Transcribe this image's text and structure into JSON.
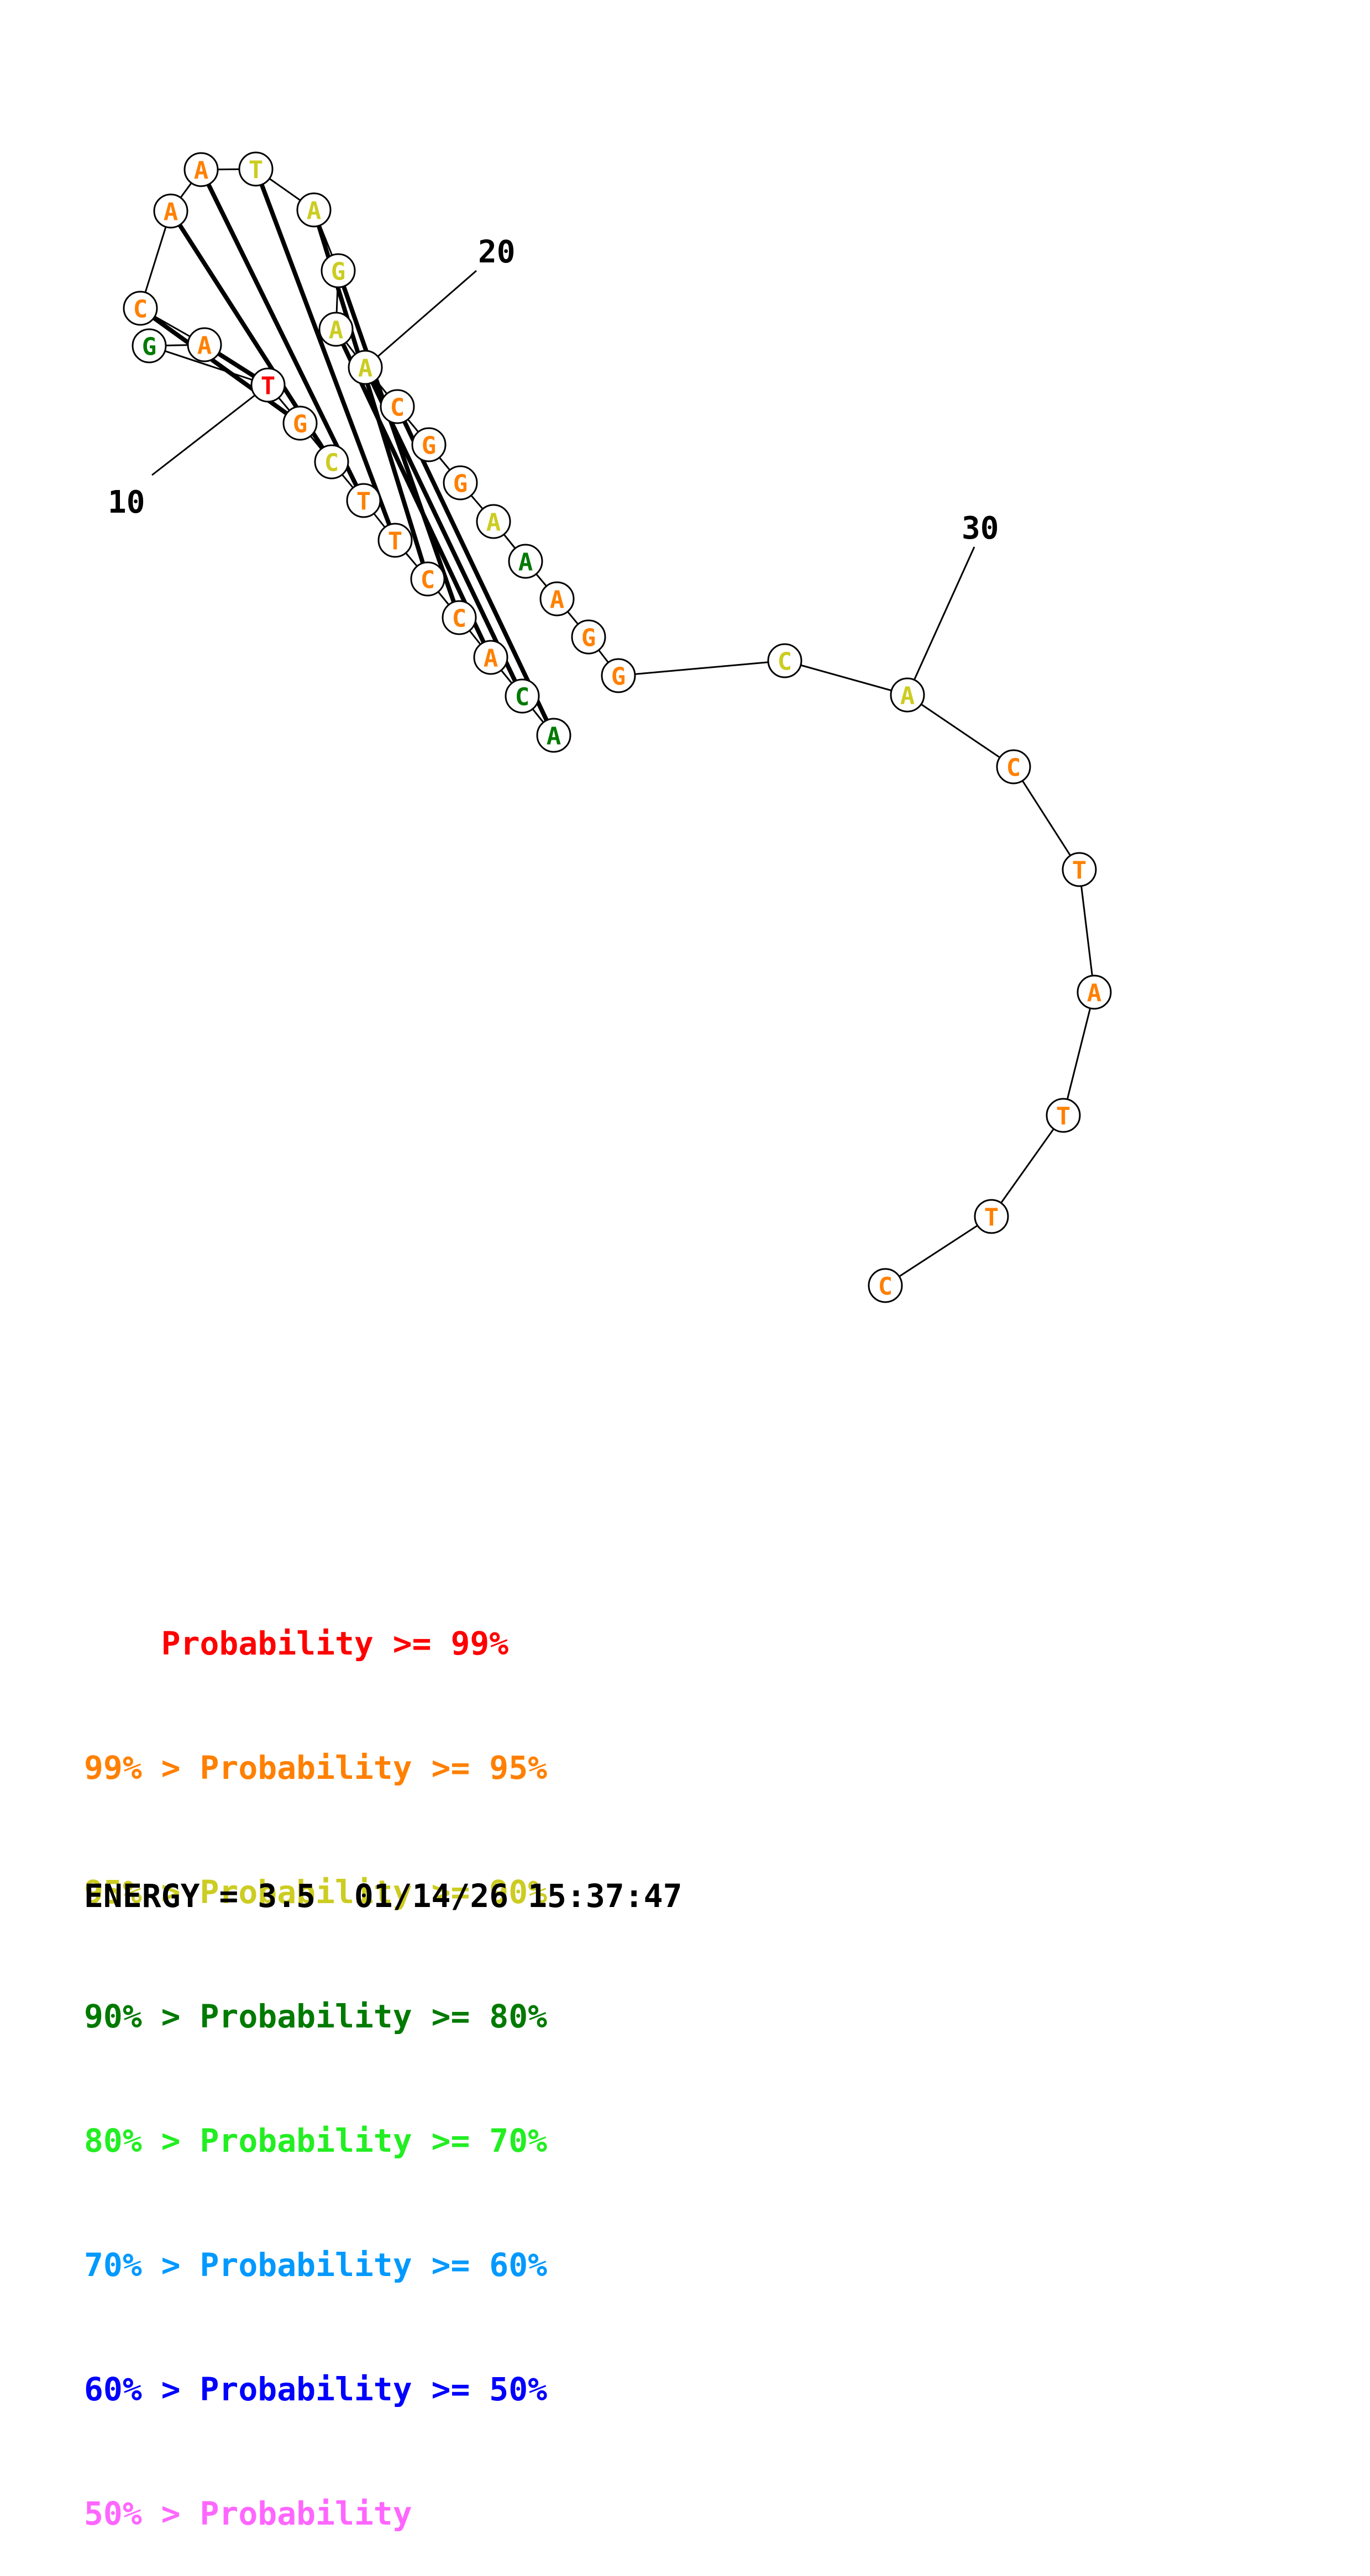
{
  "structure": {
    "sequence": [
      "A",
      "C",
      "A",
      "C",
      "C",
      "T",
      "T",
      "C",
      "G",
      "T",
      "G",
      "A",
      "C",
      "A",
      "A",
      "T",
      "A",
      "G",
      "A",
      "A",
      "C",
      "G",
      "G",
      "A",
      "A",
      "A",
      "G",
      "G",
      "C",
      "A",
      "C",
      "T",
      "A",
      "T",
      "T",
      "C"
    ],
    "pairs": [
      [
        1,
        21
      ],
      [
        2,
        20
      ],
      [
        3,
        19
      ],
      [
        4,
        18
      ],
      [
        5,
        17
      ],
      [
        6,
        16
      ],
      [
        7,
        15
      ],
      [
        8,
        14
      ],
      [
        9,
        13
      ],
      [
        10,
        12
      ]
    ],
    "probability": [
      3,
      3,
      1,
      1,
      1,
      1,
      1,
      2,
      1,
      0,
      3,
      1,
      1,
      1,
      1,
      2,
      2,
      2,
      2,
      2,
      1,
      1,
      1,
      2,
      3,
      1,
      1,
      1,
      2,
      2,
      1,
      1,
      1,
      1,
      1,
      1
    ]
  },
  "position_labels": [
    {
      "text": "10",
      "base": 10
    },
    {
      "text": "20",
      "base": 20
    },
    {
      "text": "30",
      "base": 30
    }
  ],
  "colors": {
    "red": "#ff0000",
    "orange": "#ff8000",
    "yellow": "#cccc22",
    "darkgreen": "#007a00",
    "green": "#22ee22",
    "cyan": "#0099ff",
    "blue": "#0000ff",
    "pink": "#ff66ff"
  },
  "legend": [
    {
      "text": "    Probability >= 99%",
      "color": "red"
    },
    {
      "text": "99% > Probability >= 95%",
      "color": "orange"
    },
    {
      "text": "95% > Probability >= 90%",
      "color": "yellow"
    },
    {
      "text": "90% > Probability >= 80%",
      "color": "darkgreen"
    },
    {
      "text": "80% > Probability >= 70%",
      "color": "green"
    },
    {
      "text": "70% > Probability >= 60%",
      "color": "cyan"
    },
    {
      "text": "60% > Probability >= 50%",
      "color": "blue"
    },
    {
      "text": "50% > Probability",
      "color": "pink"
    }
  ],
  "footer": "ENERGY = 3.5  01/14/26 15:37:47"
}
